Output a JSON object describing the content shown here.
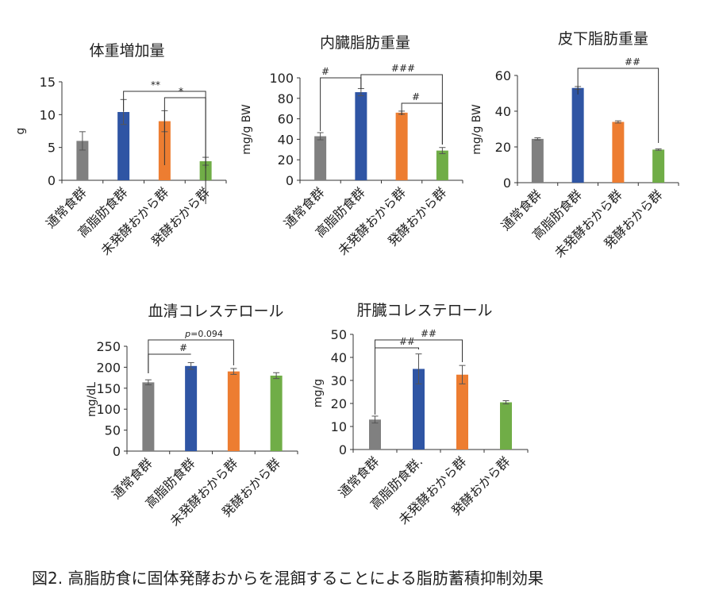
{
  "caption": "図2. 高脂肪食に固体発酵おからを混餌することによる脂肪蓄積抑制効果",
  "chart_data": [
    {
      "type": "bar",
      "title": "体重増加量",
      "ylabel": "g",
      "ylim": [
        0,
        15
      ],
      "yticks": [
        0,
        5,
        10,
        15
      ],
      "categories": [
        "通常食群",
        "高脂肪食群",
        "未発酵おから群",
        "発酵おから群"
      ],
      "values": [
        6.0,
        10.4,
        9.0,
        2.9
      ],
      "errors": [
        1.4,
        1.9,
        1.6,
        0.6
      ],
      "colors": [
        "#808080",
        "#2f55a4",
        "#ed7d31",
        "#70ad47"
      ],
      "annotations": [
        {
          "text": "**",
          "from": 1,
          "to": 3
        },
        {
          "text": "*",
          "from": 2,
          "to": 3
        }
      ]
    },
    {
      "type": "bar",
      "title": "内臓脂肪重量",
      "ylabel": "mg/g BW",
      "ylim": [
        0,
        100
      ],
      "yticks": [
        0,
        20,
        40,
        60,
        80,
        100
      ],
      "categories": [
        "通常食群",
        "高脂肪食群",
        "未発酵おから群",
        "発酵おから群"
      ],
      "values": [
        43,
        86,
        66,
        29
      ],
      "errors": [
        3.5,
        3.5,
        1.5,
        3.0
      ],
      "colors": [
        "#808080",
        "#2f55a4",
        "#ed7d31",
        "#70ad47"
      ],
      "annotations": [
        {
          "text": "#",
          "from": 0,
          "to": 1
        },
        {
          "text": "###",
          "from": 1,
          "to": 3
        },
        {
          "text": "#",
          "from": 2,
          "to": 3
        }
      ]
    },
    {
      "type": "bar",
      "title": "皮下脂肪重量",
      "ylabel": "mg/g BW",
      "ylim": [
        0,
        60
      ],
      "yticks": [
        0,
        20,
        40,
        60
      ],
      "categories": [
        "通常食群",
        "高脂肪食群",
        "未発酵おから群",
        "発酵おから群"
      ],
      "values": [
        24.5,
        53,
        34,
        18.5
      ],
      "errors": [
        0.6,
        0.8,
        0.6,
        0.4
      ],
      "colors": [
        "#808080",
        "#2f55a4",
        "#ed7d31",
        "#70ad47"
      ],
      "annotations": [
        {
          "text": "##",
          "from": 1,
          "to": 3
        }
      ]
    },
    {
      "type": "bar",
      "title": "血清コレステロール",
      "ylabel": "mg/dL",
      "ylim": [
        0,
        250
      ],
      "yticks": [
        0,
        50,
        100,
        150,
        200,
        250
      ],
      "categories": [
        "通常食群",
        "高脂肪食群",
        "未発酵おから群",
        "発酵おから群"
      ],
      "values": [
        164,
        203,
        190,
        180
      ],
      "errors": [
        6,
        8,
        7,
        7
      ],
      "colors": [
        "#808080",
        "#2f55a4",
        "#ed7d31",
        "#70ad47"
      ],
      "annotations": [
        {
          "text": "#",
          "from": 0,
          "to": 1
        },
        {
          "text": "p=0.094",
          "from": 0,
          "to": 2
        }
      ]
    },
    {
      "type": "bar",
      "title": "肝臓コレステロール",
      "ylabel": "mg/g",
      "ylim": [
        0,
        50
      ],
      "yticks": [
        0,
        10,
        20,
        30,
        40,
        50
      ],
      "categories": [
        "通常食群",
        "高脂肪食群.",
        "未発酵おから群",
        "発酵おから群"
      ],
      "values": [
        13,
        35,
        32.5,
        20.5
      ],
      "errors": [
        1.5,
        6.5,
        4.0,
        0.7
      ],
      "colors": [
        "#808080",
        "#2f55a4",
        "#ed7d31",
        "#70ad47"
      ],
      "annotations": [
        {
          "text": "##",
          "from": 0,
          "to": 1
        },
        {
          "text": "##",
          "from": 0,
          "to": 2
        }
      ]
    }
  ]
}
